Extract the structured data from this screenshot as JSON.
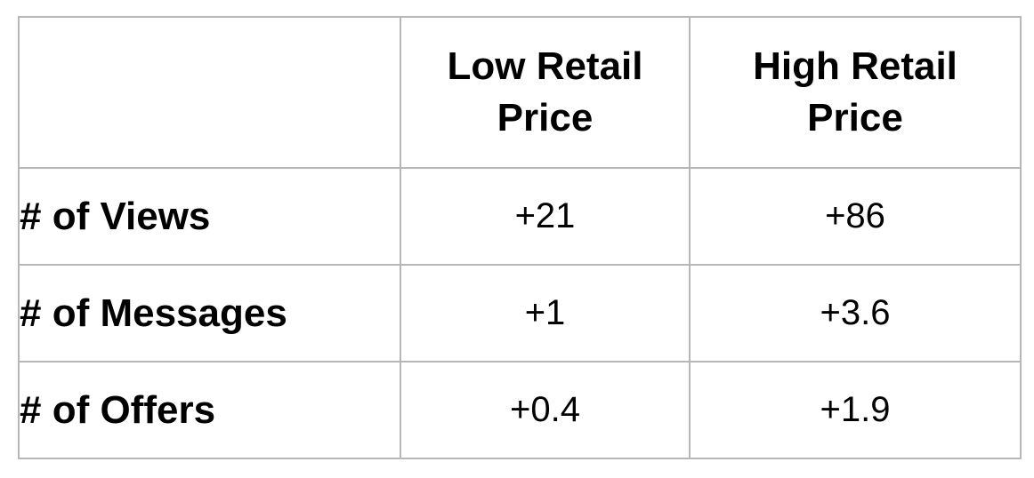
{
  "table": {
    "columns": [
      "",
      "Low Retail Price",
      "High Retail Price"
    ],
    "rows": [
      {
        "label": "# of Views",
        "values": [
          "+21",
          "+86"
        ]
      },
      {
        "label": "# of Messages",
        "values": [
          "+1",
          "+3.6"
        ]
      },
      {
        "label": "# of Offers",
        "values": [
          "+0.4",
          "+1.9"
        ]
      }
    ]
  },
  "colors": {
    "border": "#b7b7b7",
    "text": "#000000",
    "background": "#ffffff"
  }
}
